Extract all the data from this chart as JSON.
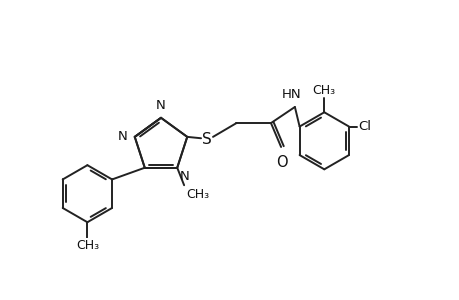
{
  "bg_color": "#ffffff",
  "line_color": "#222222",
  "line_width": 1.4,
  "text_color": "#111111",
  "font_size": 9.5,
  "figsize": [
    4.6,
    3.0
  ],
  "dpi": 100,
  "xlim": [
    0,
    10
  ],
  "ylim": [
    0,
    6.5
  ]
}
